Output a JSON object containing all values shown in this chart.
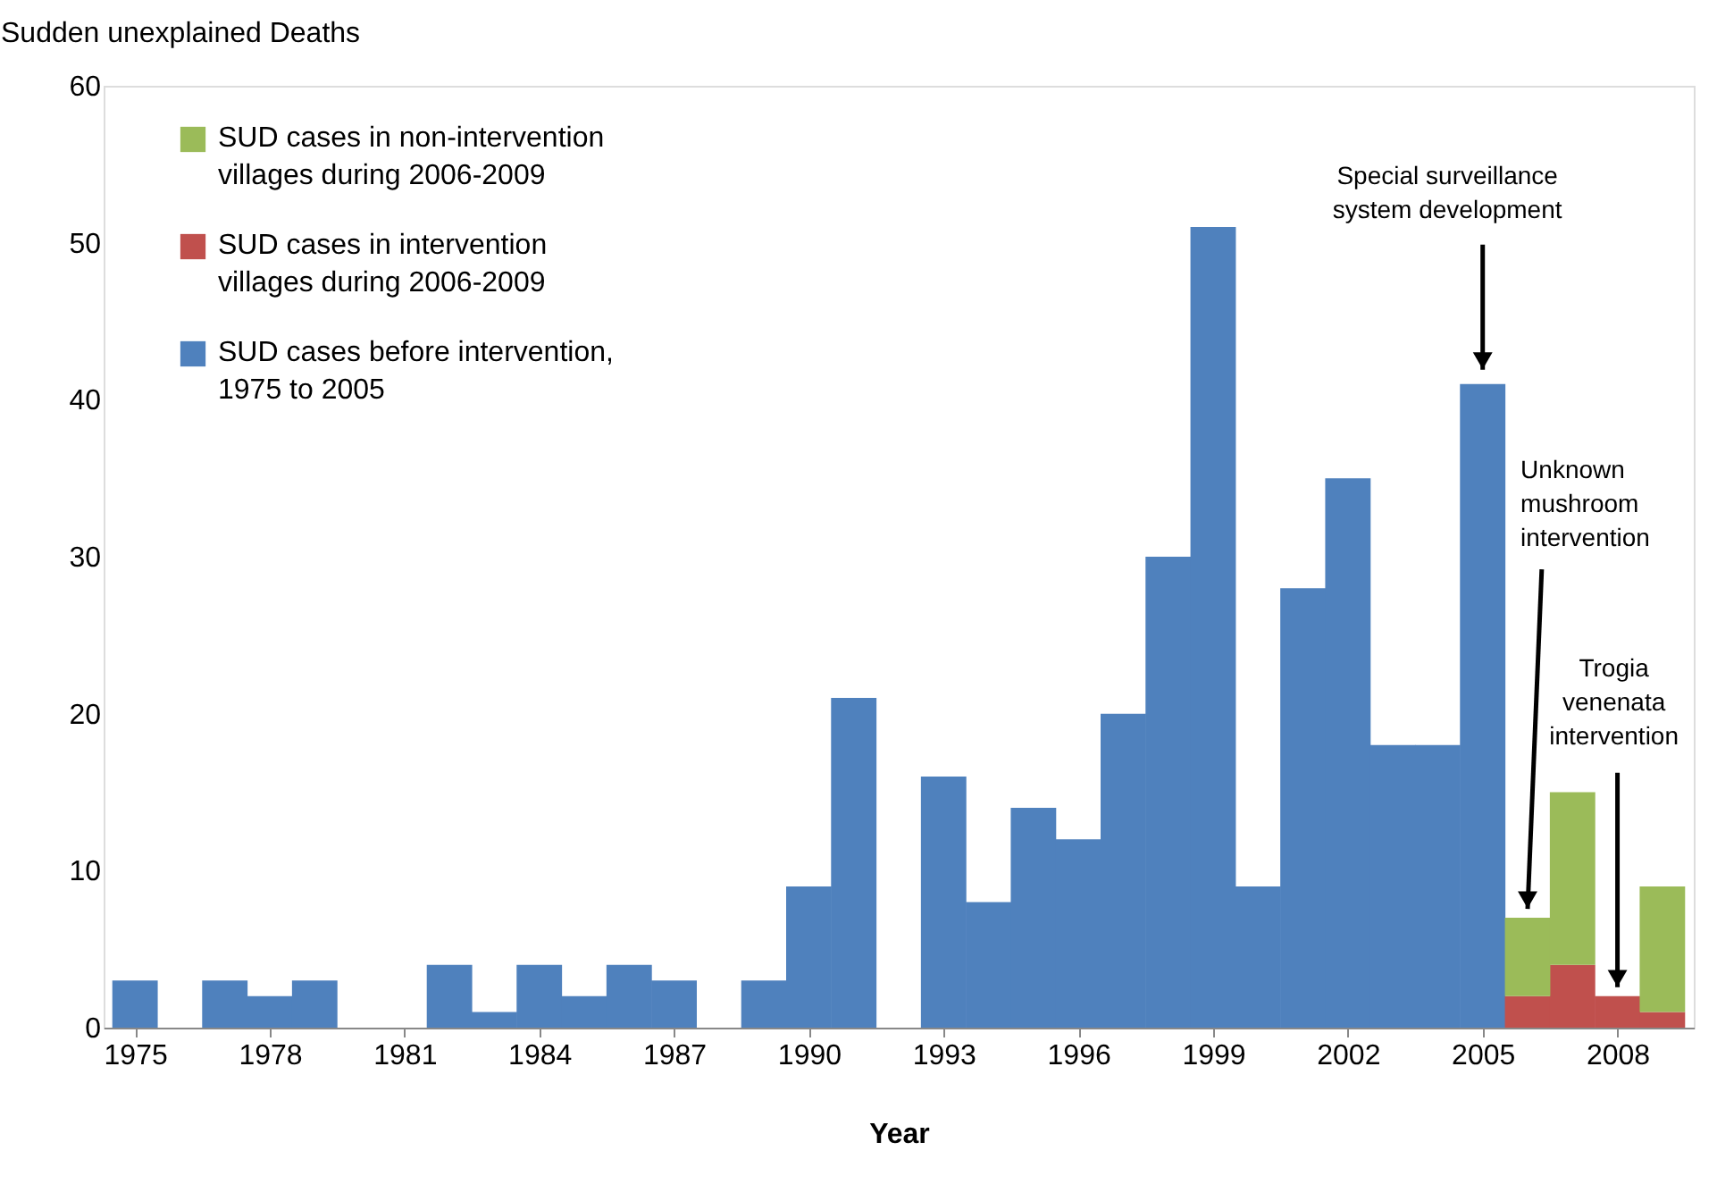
{
  "chart_data": {
    "type": "bar",
    "ylabel": "Sudden unexplained Deaths",
    "xlabel": "Year",
    "stacked": true,
    "x": [
      1975,
      1976,
      1977,
      1978,
      1979,
      1980,
      1981,
      1982,
      1983,
      1984,
      1985,
      1986,
      1987,
      1988,
      1989,
      1990,
      1991,
      1992,
      1993,
      1994,
      1995,
      1996,
      1997,
      1998,
      1999,
      2000,
      2001,
      2002,
      2003,
      2004,
      2005,
      2006,
      2007,
      2008,
      2009
    ],
    "series": [
      {
        "name": "SUD cases before intervention, 1975 to 2005",
        "color": "#4f81bd",
        "values": [
          3,
          0,
          3,
          2,
          3,
          0,
          0,
          4,
          1,
          4,
          2,
          4,
          3,
          0,
          3,
          9,
          21,
          0,
          16,
          8,
          14,
          12,
          20,
          30,
          51,
          9,
          28,
          35,
          18,
          18,
          41,
          null,
          null,
          null,
          null
        ]
      },
      {
        "name": "SUD cases in intervention villages during 2006-2009",
        "color": "#c0504d",
        "values": [
          null,
          null,
          null,
          null,
          null,
          null,
          null,
          null,
          null,
          null,
          null,
          null,
          null,
          null,
          null,
          null,
          null,
          null,
          null,
          null,
          null,
          null,
          null,
          null,
          null,
          null,
          null,
          null,
          null,
          null,
          null,
          2,
          4,
          2,
          1
        ]
      },
      {
        "name": "SUD cases in non-intervention villages during 2006-2009",
        "color": "#9bbb59",
        "values": [
          null,
          null,
          null,
          null,
          null,
          null,
          null,
          null,
          null,
          null,
          null,
          null,
          null,
          null,
          null,
          null,
          null,
          null,
          null,
          null,
          null,
          null,
          null,
          null,
          null,
          null,
          null,
          null,
          null,
          null,
          null,
          5,
          11,
          null,
          8
        ]
      }
    ],
    "xlim": [
      1974.5,
      2009.5
    ],
    "xticks": [
      1975,
      1978,
      1981,
      1984,
      1987,
      1990,
      1993,
      1996,
      1999,
      2002,
      2005,
      2008
    ],
    "ylim": [
      0,
      60
    ],
    "yticks": [
      0,
      10,
      20,
      30,
      40,
      50,
      60
    ],
    "grid": false,
    "legend": "top left",
    "annotations": [
      {
        "text": "Special surveillance system development",
        "x": 2005,
        "y": 41
      },
      {
        "text": "Unknown mushroom intervention",
        "x": 2006,
        "y": 7
      },
      {
        "text": "Trogia venenata intervention",
        "x": 2008,
        "y": 2
      }
    ]
  }
}
